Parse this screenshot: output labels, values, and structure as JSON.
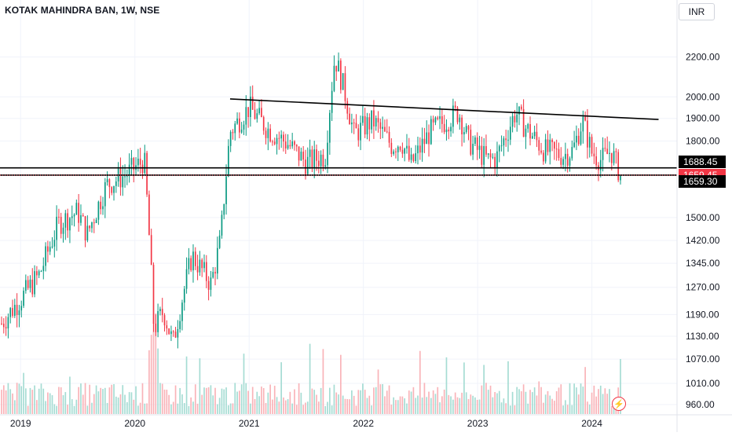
{
  "header": {
    "symbol": "KOTAK MAHINDRA BAN, 1W, NSE",
    "currency": "INR"
  },
  "chart_data": {
    "type": "candlestick",
    "y_axis": {
      "ticks": [
        2200,
        2000,
        1900,
        1800,
        1500,
        1420,
        1345,
        1270,
        1190,
        1130,
        1070,
        1010,
        960
      ],
      "tick_labels": [
        "2200.00",
        "2000.00",
        "1900.00",
        "1800.00",
        "1500.00",
        "1420.00",
        "1345.00",
        "1270.00",
        "1190.00",
        "1130.00",
        "1070.00",
        "1010.00",
        "960.00"
      ],
      "scale": "log",
      "range": [
        930,
        2400
      ]
    },
    "x_axis": {
      "labels": [
        "2019",
        "2020",
        "2021",
        "2022",
        "2023",
        "2024"
      ],
      "range": [
        "2018-11",
        "2024-04"
      ]
    },
    "price_labels": [
      {
        "text": "1688.45",
        "value": 1688.45,
        "color": "#000000"
      },
      {
        "text": "1659.45",
        "value": 1659.45,
        "color": "#f23645"
      },
      {
        "text": "1659.30",
        "value": 1659.3,
        "color": "#000000"
      }
    ],
    "horizontal_lines": [
      1688.45,
      1659.3
    ],
    "trendline": {
      "from": {
        "date": "2020-11",
        "price": 1990
      },
      "to": {
        "date": "2024-08",
        "price": 1895
      }
    },
    "anchors": [
      [
        "2018-11",
        1165
      ],
      [
        "2019-01",
        1235
      ],
      [
        "2019-03",
        1310
      ],
      [
        "2019-05",
        1480
      ],
      [
        "2019-07",
        1520
      ],
      [
        "2019-08",
        1440
      ],
      [
        "2019-10",
        1620
      ],
      [
        "2019-12",
        1660
      ],
      [
        "2020-02",
        1720
      ],
      [
        "2020-03",
        1150
      ],
      [
        "2020-04",
        1200
      ],
      [
        "2020-05",
        1110
      ],
      [
        "2020-07",
        1370
      ],
      [
        "2020-09",
        1280
      ],
      [
        "2020-10",
        1420
      ],
      [
        "2020-11",
        1840
      ],
      [
        "2021-01",
        1950
      ],
      [
        "2021-03",
        1850
      ],
      [
        "2021-05",
        1790
      ],
      [
        "2021-07",
        1710
      ],
      [
        "2021-09",
        1740
      ],
      [
        "2021-10",
        2200
      ],
      [
        "2021-11",
        2030
      ],
      [
        "2021-12",
        1830
      ],
      [
        "2022-02",
        1890
      ],
      [
        "2022-04",
        1780
      ],
      [
        "2022-05",
        1800
      ],
      [
        "2022-06",
        1700
      ],
      [
        "2022-08",
        1840
      ],
      [
        "2022-10",
        1900
      ],
      [
        "2022-11",
        1930
      ],
      [
        "2022-12",
        1800
      ],
      [
        "2023-02",
        1720
      ],
      [
        "2023-03",
        1730
      ],
      [
        "2023-05",
        1930
      ],
      [
        "2023-06",
        1860
      ],
      [
        "2023-08",
        1760
      ],
      [
        "2023-10",
        1740
      ],
      [
        "2023-11",
        1760
      ],
      [
        "2023-12",
        1890
      ],
      [
        "2024-01",
        1750
      ],
      [
        "2024-02",
        1720
      ],
      [
        "2024-03",
        1760
      ],
      [
        "2024-04",
        1659.45
      ]
    ],
    "colors": {
      "up": "#089981",
      "down": "#f23645",
      "up_volume": "#a5dcd3",
      "down_volume": "#f9b3b8",
      "grid": "#f0f3fa"
    }
  }
}
